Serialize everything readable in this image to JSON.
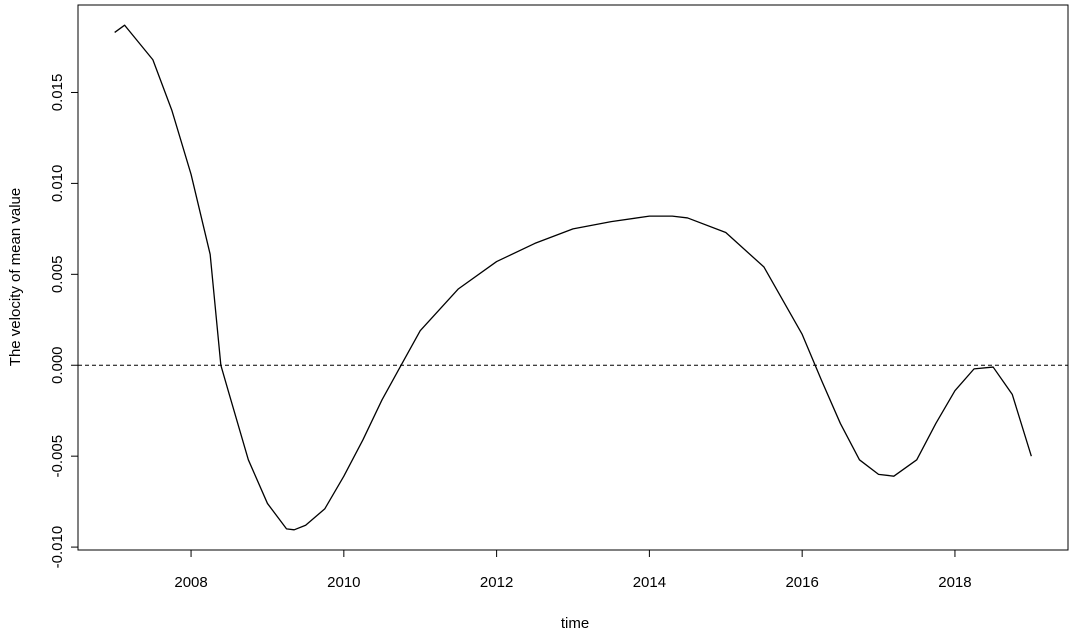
{
  "chart_data": {
    "type": "line",
    "x_label": "time",
    "y_label": "The velocity of mean value",
    "x": [
      2007,
      2007.13,
      2007.5,
      2007.75,
      2008,
      2008.25,
      2008.39,
      2008.5,
      2008.75,
      2009,
      2009.25,
      2009.35,
      2009.5,
      2009.75,
      2010,
      2010.25,
      2010.5,
      2010.75,
      2011,
      2011.5,
      2012,
      2012.5,
      2013,
      2013.5,
      2014,
      2014.3,
      2014.5,
      2015,
      2015.5,
      2016,
      2016.25,
      2016.5,
      2016.75,
      2017,
      2017.2,
      2017.5,
      2017.75,
      2018,
      2018.25,
      2018.5,
      2018.75,
      2019
    ],
    "series": [
      {
        "color": "#000000",
        "values": [
          0.0183,
          0.0187,
          0.0168,
          0.014,
          0.0105,
          0.0061,
          0.0,
          -0.0016,
          -0.0052,
          -0.0076,
          -0.009,
          -0.00905,
          -0.0088,
          -0.0079,
          -0.0061,
          -0.0041,
          -0.0019,
          0.0,
          0.0019,
          0.0042,
          0.0057,
          0.0067,
          0.0075,
          0.0079,
          0.0082,
          0.0082,
          0.0081,
          0.0073,
          0.0054,
          0.0017,
          -0.0008,
          -0.0032,
          -0.0052,
          -0.006,
          -0.0061,
          -0.0052,
          -0.0032,
          -0.0014,
          -0.0002,
          -0.0001,
          -0.0016,
          -0.005
        ]
      }
    ],
    "hline": 0,
    "xlim": [
      2006.52,
      2019.48
    ],
    "ylim": [
      -0.01016,
      0.01981
    ],
    "xticks": [
      2008,
      2010,
      2012,
      2014,
      2016,
      2018
    ],
    "yticks": [
      {
        "value": -0.01,
        "label": "-0.010"
      },
      -0.005,
      {
        "value": 0,
        "label": "0.000"
      },
      0.005,
      {
        "value": 0.01,
        "label": "0.010"
      },
      0.015
    ]
  }
}
